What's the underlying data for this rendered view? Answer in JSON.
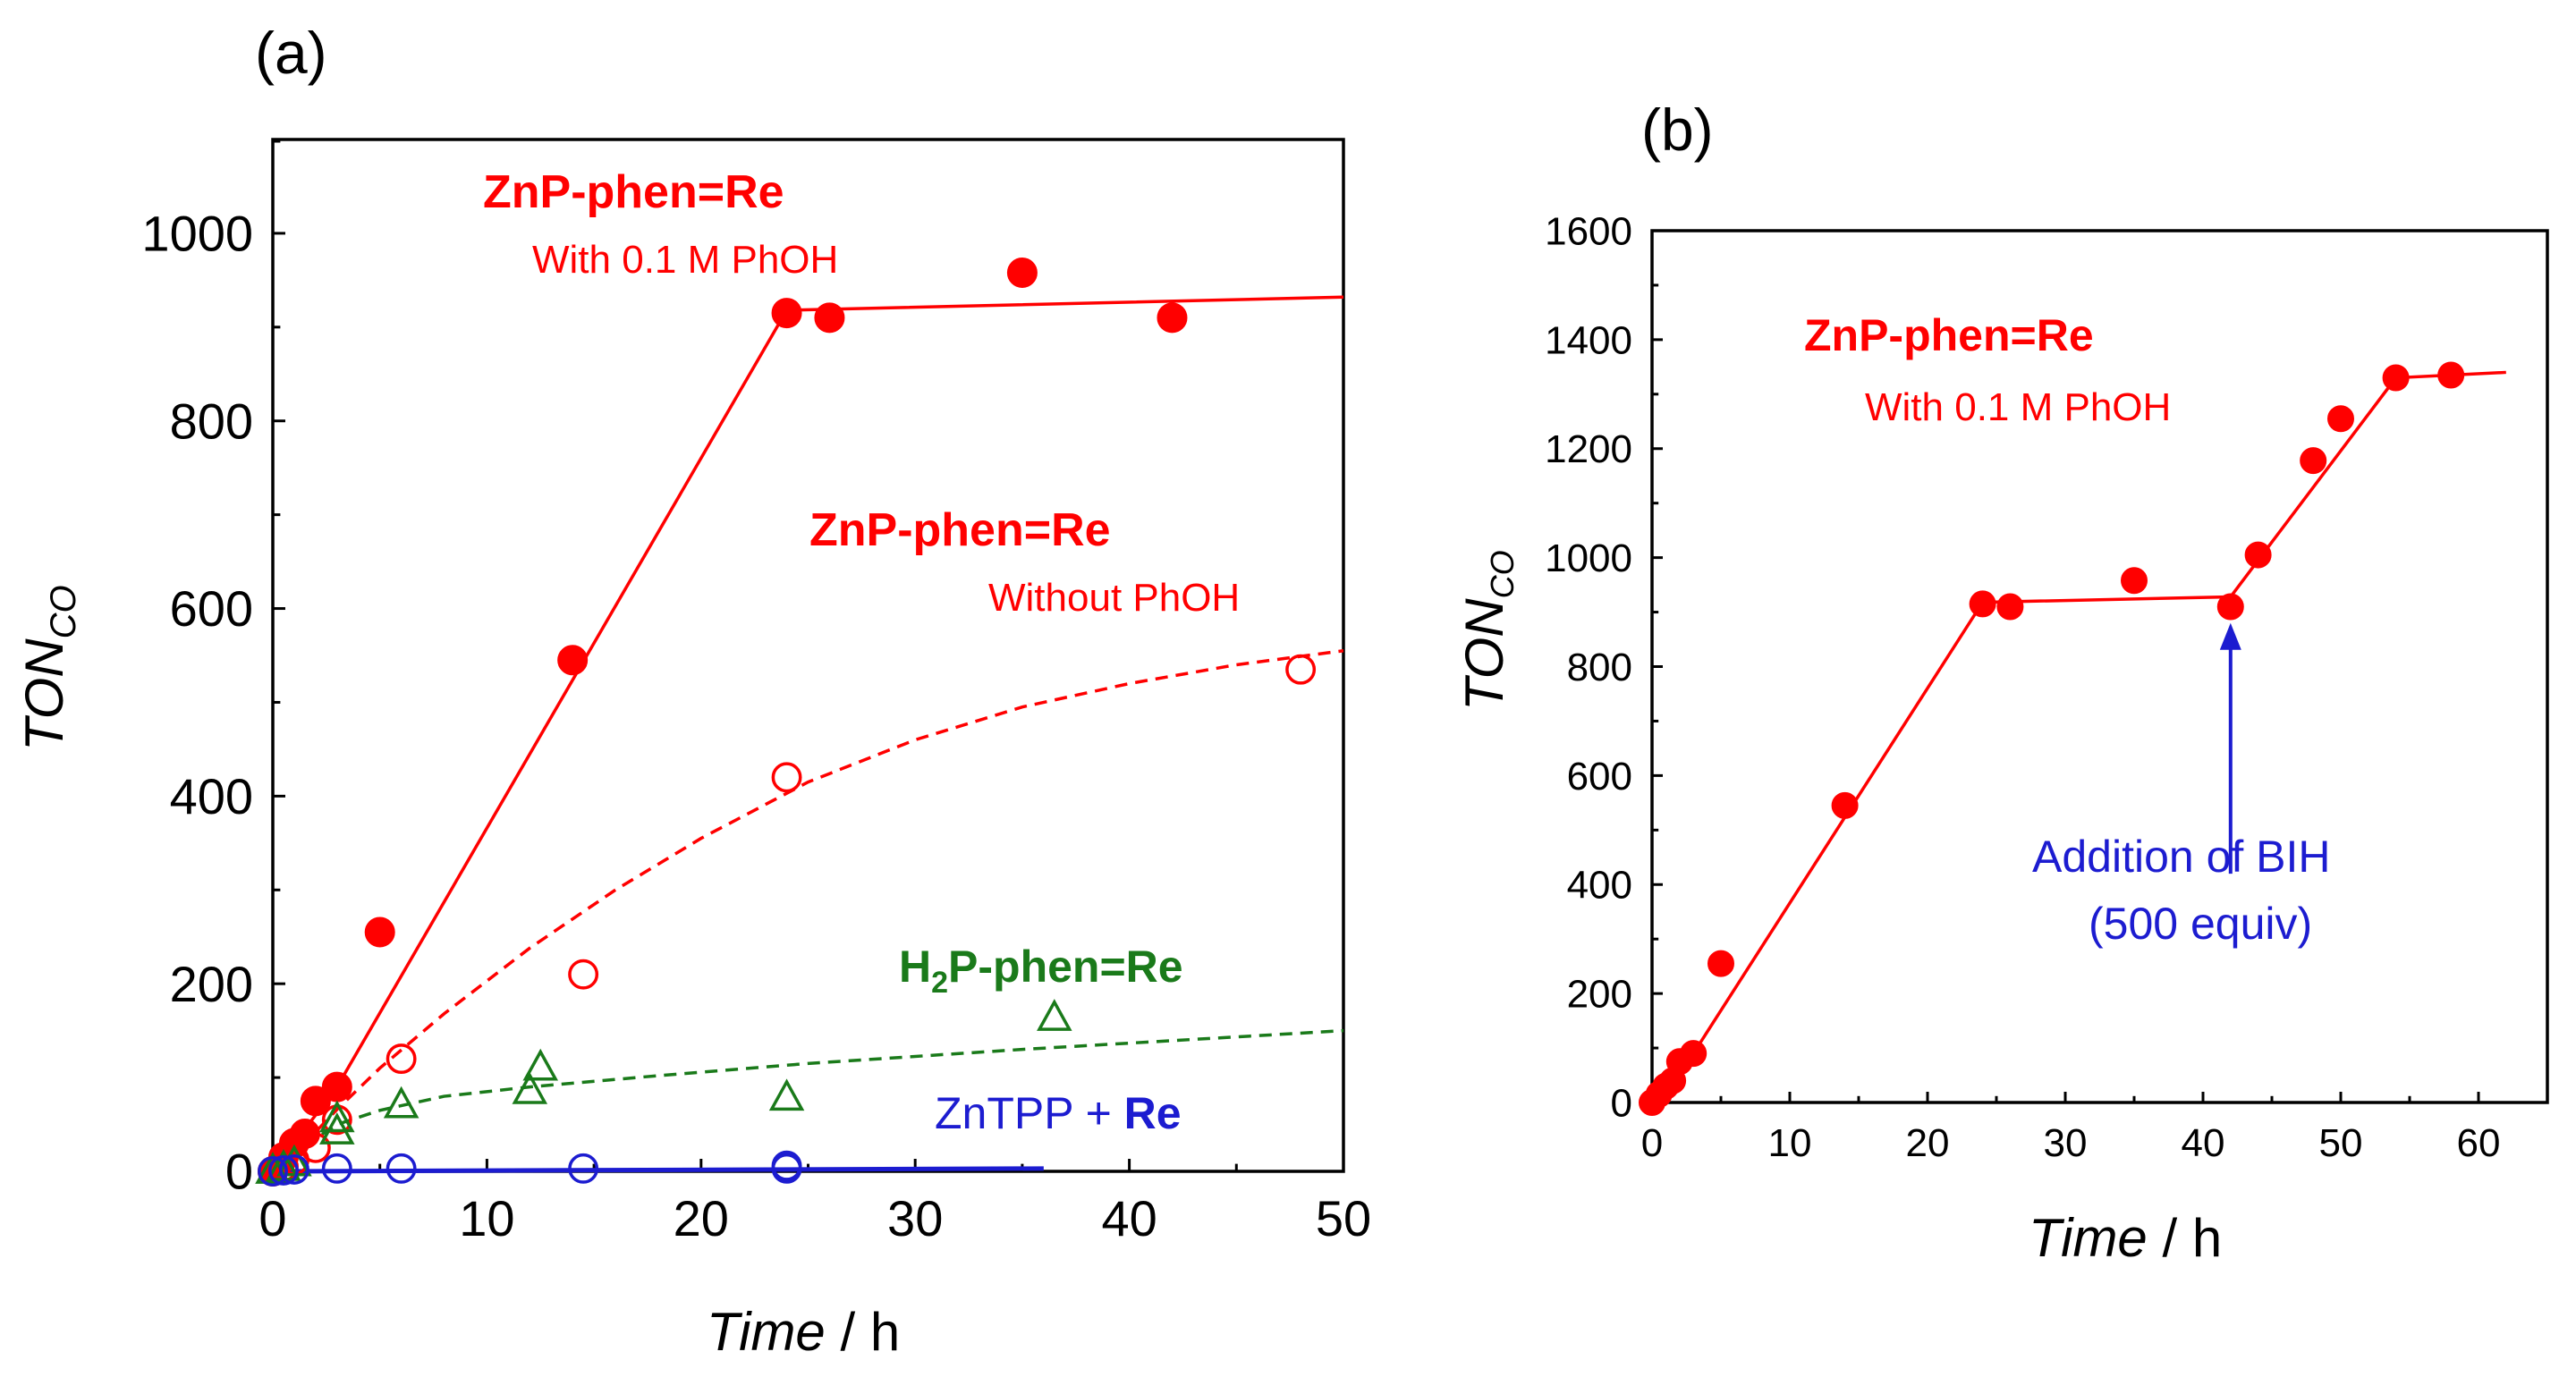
{
  "chart_data": [
    {
      "panel_label": "(a)",
      "type": "scatter",
      "xlabel_italic": "Time",
      "xlabel_unit": " / h",
      "ylabel_main": "TON",
      "ylabel_sub": "CO",
      "xlim": [
        0,
        50
      ],
      "ylim": [
        0,
        1100
      ],
      "xticks": [
        0,
        10,
        20,
        30,
        40,
        50
      ],
      "yticks": [
        0,
        200,
        400,
        600,
        800,
        1000
      ],
      "colors": {
        "red": "#ff0000",
        "green": "#1a7a1a",
        "blue": "#1c1cd0"
      },
      "series": [
        {
          "name": "ZnP-phen=Re with 0.1 M PhOH",
          "marker": "filled-circle",
          "color": "#ff0000",
          "x": [
            0,
            0.5,
            1,
            1.5,
            2,
            3,
            5,
            14,
            24,
            26,
            35,
            42
          ],
          "y": [
            0,
            15,
            30,
            40,
            75,
            90,
            255,
            545,
            915,
            910,
            958,
            910
          ],
          "fit": {
            "style": "solid",
            "x": [
              0,
              3,
              24,
              50
            ],
            "y": [
              0,
              90,
              918,
              932
            ]
          }
        },
        {
          "name": "ZnP-phen=Re without PhOH",
          "marker": "open-circle",
          "color": "#ff0000",
          "x": [
            0,
            0.5,
            1,
            2,
            3,
            6,
            14.5,
            24,
            48
          ],
          "y": [
            0,
            5,
            12,
            25,
            55,
            120,
            210,
            420,
            535
          ],
          "fit": {
            "style": "dashed",
            "x": [
              0,
              1,
              2,
              3,
              5,
              8,
              12,
              16,
              20,
              25,
              30,
              35,
              40,
              45,
              50
            ],
            "y": [
              0,
              20,
              42,
              66,
              110,
              168,
              238,
              300,
              355,
              415,
              460,
              495,
              520,
              540,
              555
            ]
          }
        },
        {
          "name": "H2P-phen=Re",
          "marker": "open-triangle",
          "color": "#1a7a1a",
          "x": [
            0,
            0.5,
            1,
            3,
            3,
            6,
            12,
            12.5,
            24,
            36.5
          ],
          "y": [
            0,
            3,
            8,
            42,
            55,
            70,
            85,
            110,
            78,
            163
          ],
          "fit": {
            "style": "dashed",
            "x": [
              0,
              1,
              2,
              3,
              5,
              8,
              12,
              18,
              25,
              35,
              50
            ],
            "y": [
              0,
              15,
              35,
              50,
              65,
              80,
              90,
              102,
              115,
              130,
              150
            ]
          }
        },
        {
          "name": "ZnTPP + Re",
          "marker": "open-circle",
          "color": "#1c1cd0",
          "x": [
            0,
            0.5,
            1,
            3,
            6,
            14.5,
            24,
            24
          ],
          "y": [
            0,
            1,
            2,
            3,
            3,
            3,
            3,
            6
          ],
          "fit": {
            "style": "solid",
            "x": [
              0,
              36
            ],
            "y": [
              0,
              3
            ]
          }
        }
      ],
      "annotations": {
        "a1": "ZnP-phen=Re",
        "a1_sub": "With 0.1 M PhOH",
        "a2": "ZnP-phen=Re",
        "a2_sub": "Without PhOH",
        "a3_h": "H",
        "a3_2": "2",
        "a3_rest": "P-phen=Re",
        "a4_pre": "ZnTPP + ",
        "a4_bold": "Re"
      }
    },
    {
      "panel_label": "(b)",
      "type": "scatter",
      "xlabel_italic": "Time",
      "xlabel_unit": " / h",
      "ylabel_main": "TON",
      "ylabel_sub": "CO",
      "xlim": [
        0,
        65
      ],
      "ylim": [
        0,
        1600
      ],
      "xticks": [
        0,
        10,
        20,
        30,
        40,
        50,
        60
      ],
      "yticks": [
        0,
        200,
        400,
        600,
        800,
        1000,
        1200,
        1400,
        1600
      ],
      "series": [
        {
          "name": "ZnP-phen=Re with 0.1 M PhOH",
          "marker": "filled-circle",
          "color": "#ff0000",
          "x": [
            0,
            0.5,
            1,
            1.5,
            2,
            3,
            5,
            14,
            24,
            26,
            35,
            42,
            44,
            48,
            50,
            54,
            58
          ],
          "y": [
            0,
            15,
            30,
            40,
            75,
            90,
            255,
            545,
            915,
            910,
            958,
            910,
            1005,
            1178,
            1255,
            1330,
            1335
          ],
          "fit": {
            "style": "solid",
            "x": [
              0,
              3,
              24,
              42,
              54,
              62
            ],
            "y": [
              0,
              90,
              918,
              928,
              1330,
              1340
            ]
          }
        }
      ],
      "annotations": {
        "b1": "ZnP-phen=Re",
        "b1_sub": "With 0.1 M PhOH",
        "arrow_line1": "Addition of BIH",
        "arrow_line2": "(500 equiv)",
        "arrow_x": 42,
        "arrow_y_from": 420,
        "arrow_y_to": 880
      }
    }
  ]
}
